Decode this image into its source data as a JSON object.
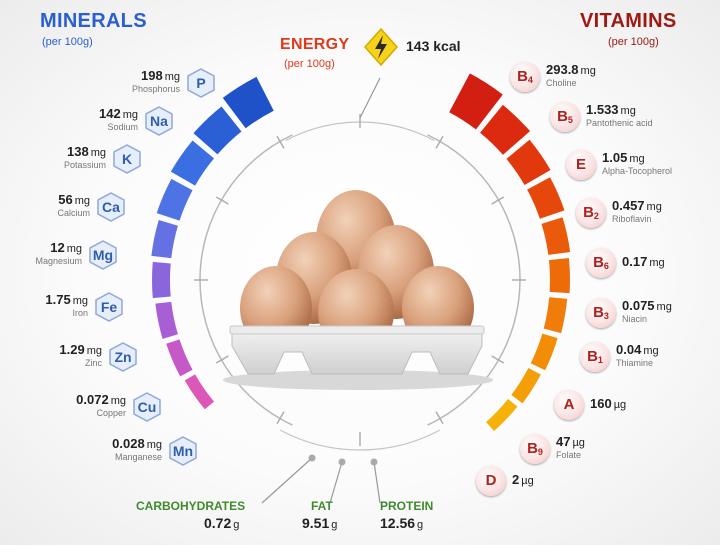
{
  "minerals": {
    "title": "MINERALS",
    "per": "(per 100g)",
    "items": [
      {
        "symbol": "P",
        "value": "198",
        "unit": "mg",
        "name": "Phosphorus"
      },
      {
        "symbol": "Na",
        "value": "142",
        "unit": "mg",
        "name": "Sodium"
      },
      {
        "symbol": "K",
        "value": "138",
        "unit": "mg",
        "name": "Potassium"
      },
      {
        "symbol": "Ca",
        "value": "56",
        "unit": "mg",
        "name": "Calcium"
      },
      {
        "symbol": "Mg",
        "value": "12",
        "unit": "mg",
        "name": "Magnesium"
      },
      {
        "symbol": "Fe",
        "value": "1.75",
        "unit": "mg",
        "name": "Iron"
      },
      {
        "symbol": "Zn",
        "value": "1.29",
        "unit": "mg",
        "name": "Zinc"
      },
      {
        "symbol": "Cu",
        "value": "0.072",
        "unit": "mg",
        "name": "Copper"
      },
      {
        "symbol": "Mn",
        "value": "0.028",
        "unit": "mg",
        "name": "Manganese"
      }
    ],
    "colors": [
      "#1f52c9",
      "#2a5fd6",
      "#3b6ee0",
      "#4d73e4",
      "#6570e2",
      "#8a66dc",
      "#a95fd4",
      "#c659c8",
      "#dc58b8"
    ]
  },
  "vitamins": {
    "title": "VITAMINS",
    "per": "(per 100g)",
    "items": [
      {
        "letter": "B",
        "sub": "4",
        "value": "293.8",
        "unit": "mg",
        "name": "Choline"
      },
      {
        "letter": "B",
        "sub": "5",
        "value": "1.533",
        "unit": "mg",
        "name": "Pantothenic acid"
      },
      {
        "letter": "E",
        "sub": "",
        "value": "1.05",
        "unit": "mg",
        "name": "Alpha-Tocopherol"
      },
      {
        "letter": "B",
        "sub": "2",
        "value": "0.457",
        "unit": "mg",
        "name": "Riboflavin"
      },
      {
        "letter": "B",
        "sub": "6",
        "value": "0.17",
        "unit": "mg",
        "name": ""
      },
      {
        "letter": "B",
        "sub": "3",
        "value": "0.075",
        "unit": "mg",
        "name": "Niacin"
      },
      {
        "letter": "B",
        "sub": "1",
        "value": "0.04",
        "unit": "mg",
        "name": "Thiamine"
      },
      {
        "letter": "A",
        "sub": "",
        "value": "160",
        "unit": "µg",
        "name": ""
      },
      {
        "letter": "B",
        "sub": "9",
        "value": "47",
        "unit": "µg",
        "name": "Folate"
      },
      {
        "letter": "D",
        "sub": "",
        "value": "2",
        "unit": "µg",
        "name": ""
      }
    ],
    "colors": [
      "#d21f12",
      "#dc2a10",
      "#e2380e",
      "#e6480c",
      "#ea5a0b",
      "#ee6b0a",
      "#f07c09",
      "#f28d08",
      "#f49f08",
      "#f6b108"
    ]
  },
  "energy": {
    "title": "ENERGY",
    "per": "(per 100g)",
    "value": "143 kcal",
    "icon": "lightning-icon"
  },
  "macros": [
    {
      "name": "CARBOHYDRATES",
      "value": "0.72",
      "unit": "g"
    },
    {
      "name": "FAT",
      "value": "9.51",
      "unit": "g"
    },
    {
      "name": "PROTEIN",
      "value": "12.56",
      "unit": "g"
    }
  ],
  "theme": {
    "mineral_title": "#2a5fd0",
    "vitamin_title": "#a01a14",
    "energy_title": "#e0391b",
    "macro_title": "#3e8b2e"
  }
}
